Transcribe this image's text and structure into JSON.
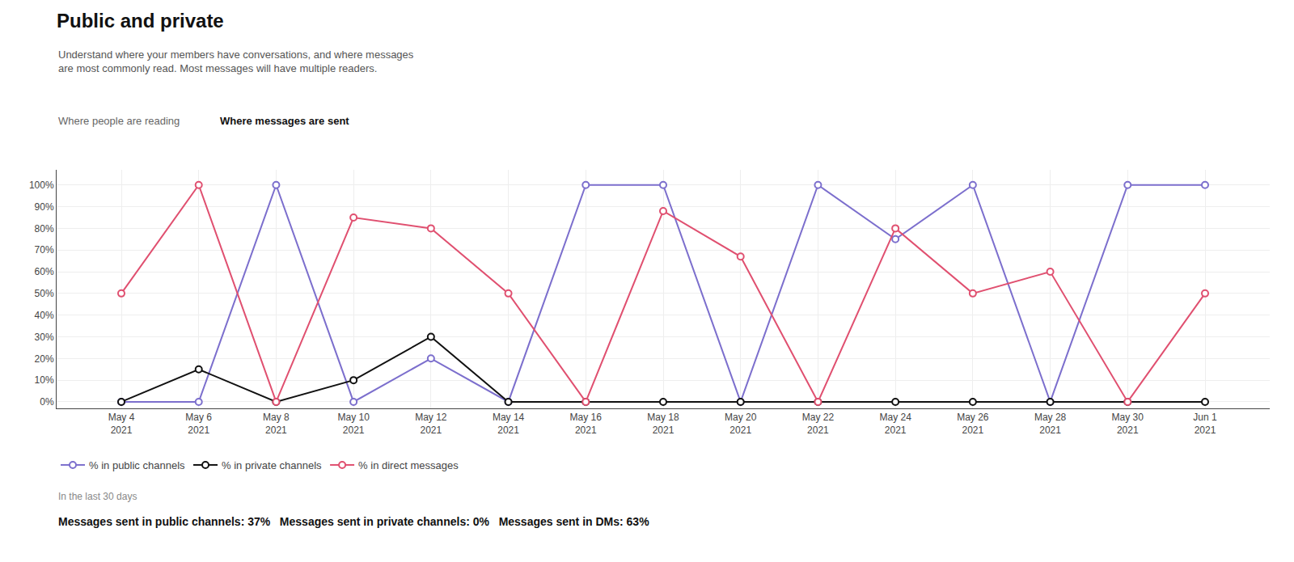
{
  "chart_data": {
    "type": "line",
    "title": "Public and private",
    "subtitle": "Understand where your members have conversations, and where messages\nare most commonly read. Most messages will have multiple readers.",
    "annotations": [
      "Where people are reading",
      "Where messages are sent",
      "In the last 30 days",
      "Messages sent in public channels: 37%   Messages sent in private channels: 0%   Messages sent in DMs: 63%"
    ],
    "categories": [
      "May 4\n2021",
      "May 6\n2021",
      "May 8\n2021",
      "May 10\n2021",
      "May 12\n2021",
      "May 14\n2021",
      "May 16\n2021",
      "May 18\n2021",
      "May 20\n2021",
      "May 22\n2021",
      "May 24\n2021",
      "May 26\n2021",
      "May 28\n2021",
      "May 30\n2021",
      "Jun 1\n2021"
    ],
    "series": [
      {
        "name": "% in public channels",
        "color": "#7c6fcd",
        "marker": "circle",
        "line_style": "solid",
        "values": [
          0,
          0,
          100,
          0,
          20,
          0,
          100,
          100,
          0,
          100,
          75,
          100,
          0,
          100,
          100
        ]
      },
      {
        "name": "% in private channels",
        "color": "#111111",
        "marker": "circle",
        "line_style": "solid",
        "values": [
          0,
          15,
          0,
          10,
          30,
          0,
          0,
          0,
          0,
          0,
          0,
          0,
          0,
          0,
          0
        ]
      },
      {
        "name": "% in direct messages",
        "color": "#e05070",
        "marker": "circle",
        "line_style": "solid",
        "values": [
          50,
          100,
          0,
          85,
          80,
          50,
          0,
          88,
          67,
          0,
          80,
          50,
          60,
          0,
          50
        ]
      }
    ],
    "ylim": [
      -3,
      107
    ],
    "yticks": [
      {
        "value": 0,
        "label": "0%"
      },
      {
        "value": 10,
        "label": "10%"
      },
      {
        "value": 20,
        "label": "20%"
      },
      {
        "value": 30,
        "label": "30%"
      },
      {
        "value": 40,
        "label": "40%"
      },
      {
        "value": 50,
        "label": "50%"
      },
      {
        "value": 60,
        "label": "60%"
      },
      {
        "value": 70,
        "label": "70%"
      },
      {
        "value": 80,
        "label": "80%"
      },
      {
        "value": 90,
        "label": "90%"
      },
      {
        "value": 100,
        "label": "100%"
      }
    ],
    "grid": true,
    "legend": "bottom"
  }
}
